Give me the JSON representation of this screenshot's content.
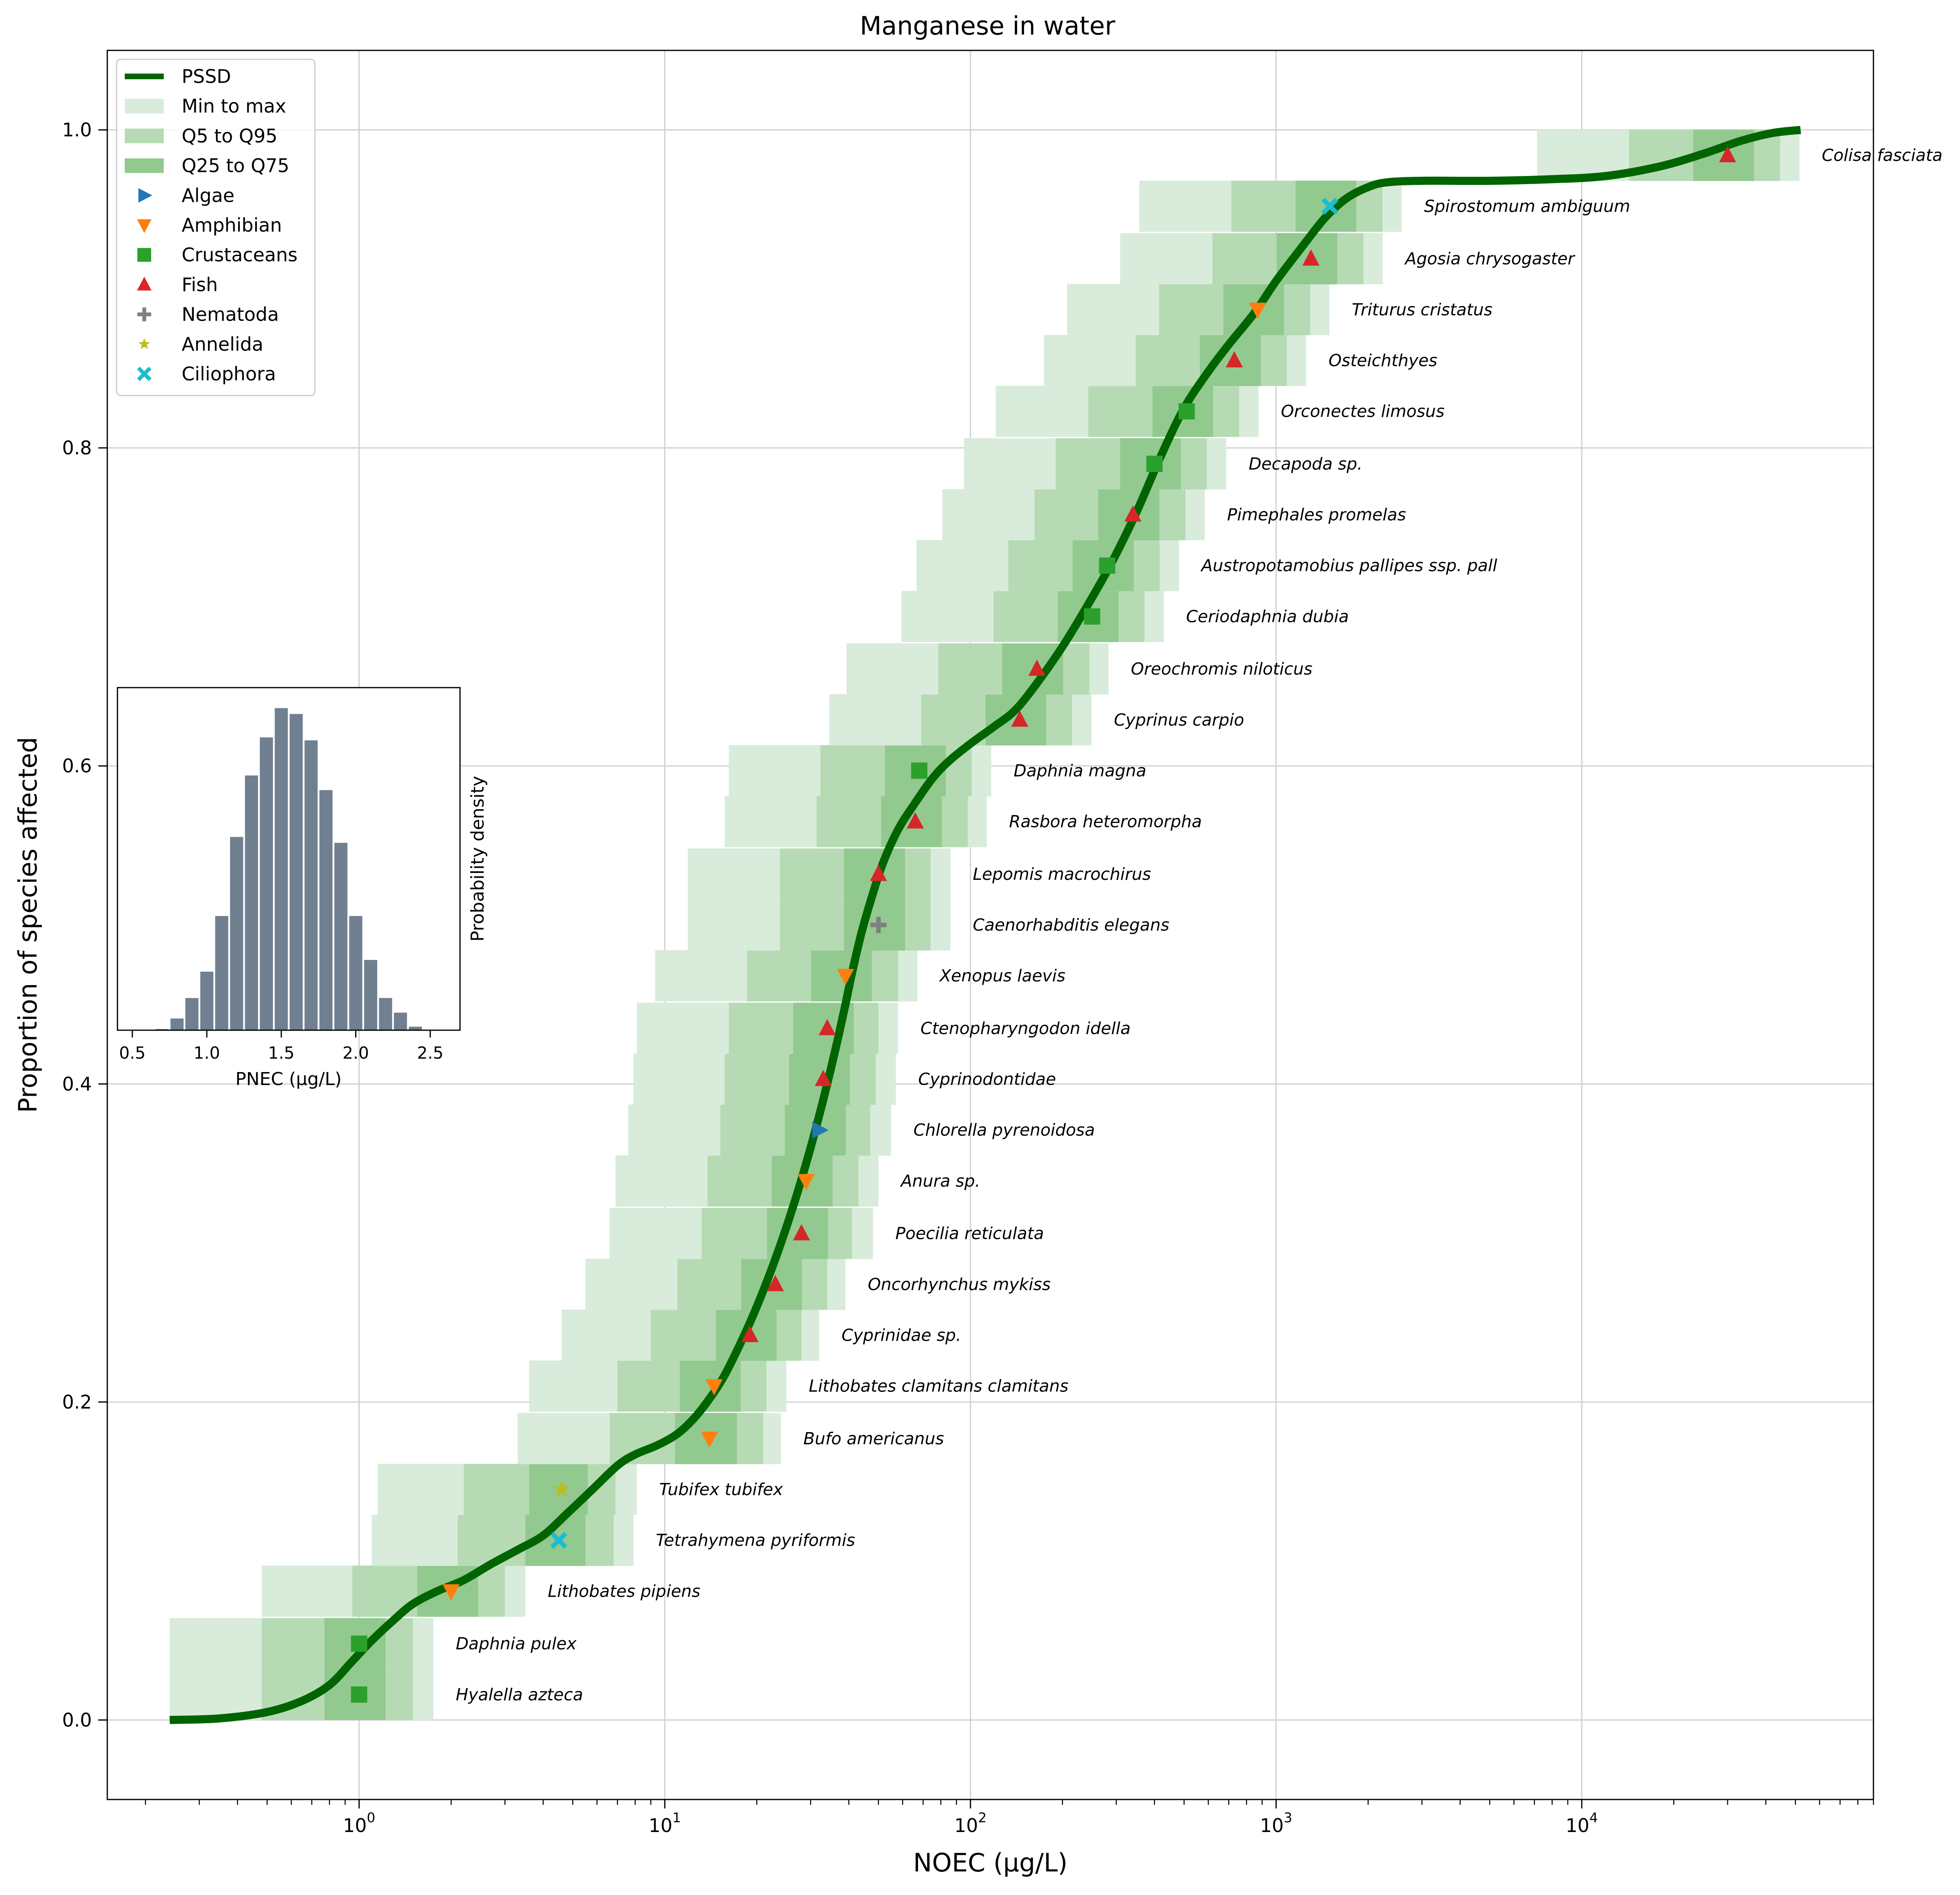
{
  "chart_data": {
    "type": "scatter",
    "title": "Manganese in water",
    "xlabel": "NOEC (µg/L)",
    "ylabel": "Proportion of species affected",
    "xscale": "log",
    "xlim": [
      0.15,
      90000
    ],
    "ylim": [
      -0.05,
      1.05
    ],
    "xticks": [
      {
        "value": 1,
        "base": "10",
        "exp": "0"
      },
      {
        "value": 10,
        "base": "10",
        "exp": "1"
      },
      {
        "value": 100,
        "base": "10",
        "exp": "2"
      },
      {
        "value": 1000,
        "base": "10",
        "exp": "3"
      },
      {
        "value": 10000,
        "base": "10",
        "exp": "4"
      }
    ],
    "yticks": [
      0.0,
      0.2,
      0.4,
      0.6,
      0.8,
      1.0
    ],
    "ytick_labels": [
      "0.0",
      "0.2",
      "0.4",
      "0.6",
      "0.8",
      "1.0"
    ],
    "grid": true,
    "legend_position": "top-left",
    "legend": [
      {
        "label": "PSSD",
        "kind": "line",
        "color": "#006400"
      },
      {
        "label": "Min to max",
        "kind": "patch",
        "color": "#d9ebda"
      },
      {
        "label": "Q5 to Q95",
        "kind": "patch",
        "color": "#b6dbb4"
      },
      {
        "label": "Q25 to Q75",
        "kind": "patch",
        "color": "#92c98f"
      },
      {
        "label": "Algae",
        "kind": "marker",
        "marker": "triangle-right",
        "color": "#1f77b4"
      },
      {
        "label": "Amphibian",
        "kind": "marker",
        "marker": "triangle-down",
        "color": "#ff7f0e"
      },
      {
        "label": "Crustaceans",
        "kind": "marker",
        "marker": "square",
        "color": "#2ca02c"
      },
      {
        "label": "Fish",
        "kind": "marker",
        "marker": "triangle-up",
        "color": "#d62728"
      },
      {
        "label": "Nematoda",
        "kind": "marker",
        "marker": "plus",
        "color": "#7f7f7f"
      },
      {
        "label": "Annelida",
        "kind": "marker",
        "marker": "star",
        "color": "#bcbd22"
      },
      {
        "label": "Ciliophora",
        "kind": "marker",
        "marker": "x",
        "color": "#17becf"
      }
    ],
    "band_colors": {
      "min_max": "#d9ebda",
      "q5_q95": "#b6dbb4",
      "q25_q75": "#92c98f"
    },
    "species": [
      {
        "name": "Hyalella azteca",
        "group": "Crustaceans",
        "y": 0.016,
        "noec": 1.0,
        "min": 0.24,
        "max": 1.75,
        "q5": 0.48,
        "q95": 1.5,
        "q25": 0.77,
        "q75": 1.22
      },
      {
        "name": "Daphnia pulex",
        "group": "Crustaceans",
        "y": 0.048,
        "noec": 1.0,
        "min": 0.24,
        "max": 1.75,
        "q5": 0.48,
        "q95": 1.5,
        "q25": 0.77,
        "q75": 1.22
      },
      {
        "name": "Lithobates pipiens",
        "group": "Amphibian",
        "y": 0.081,
        "noec": 2.0,
        "min": 0.48,
        "max": 3.5,
        "q5": 0.95,
        "q95": 3.0,
        "q25": 1.55,
        "q75": 2.45
      },
      {
        "name": "Tetrahymena pyriformis",
        "group": "Ciliophora",
        "y": 0.113,
        "noec": 4.5,
        "min": 1.1,
        "max": 7.9,
        "q5": 2.1,
        "q95": 6.8,
        "q25": 3.5,
        "q75": 5.5
      },
      {
        "name": "Tubifex tubifex",
        "group": "Annelida",
        "y": 0.145,
        "noec": 4.6,
        "min": 1.15,
        "max": 8.1,
        "q5": 2.2,
        "q95": 6.9,
        "q25": 3.6,
        "q75": 5.6
      },
      {
        "name": "Bufo americanus",
        "group": "Amphibian",
        "y": 0.177,
        "noec": 14.0,
        "min": 3.3,
        "max": 24,
        "q5": 6.6,
        "q95": 21,
        "q25": 10.8,
        "q75": 17.2
      },
      {
        "name": "Lithobates clamitans clamitans",
        "group": "Amphibian",
        "y": 0.21,
        "noec": 14.5,
        "min": 3.6,
        "max": 25,
        "q5": 7.0,
        "q95": 21.5,
        "q25": 11.2,
        "q75": 17.7
      },
      {
        "name": "Cyprinidae sp.",
        "group": "Fish",
        "y": 0.242,
        "noec": 19.0,
        "min": 4.6,
        "max": 32,
        "q5": 9.0,
        "q95": 28,
        "q25": 14.7,
        "q75": 23.2
      },
      {
        "name": "Oncorhynchus mykiss",
        "group": "Fish",
        "y": 0.274,
        "noec": 23.0,
        "min": 5.5,
        "max": 39,
        "q5": 11.0,
        "q95": 34,
        "q25": 17.8,
        "q75": 28.1
      },
      {
        "name": "Poecilia reticulata",
        "group": "Fish",
        "y": 0.306,
        "noec": 28.0,
        "min": 6.6,
        "max": 48,
        "q5": 13.2,
        "q95": 41,
        "q25": 21.6,
        "q75": 34.2
      },
      {
        "name": "Anura sp.",
        "group": "Amphibian",
        "y": 0.339,
        "noec": 29.0,
        "min": 6.9,
        "max": 50,
        "q5": 13.8,
        "q95": 43,
        "q25": 22.4,
        "q75": 35.4
      },
      {
        "name": "Chlorella pyrenoidosa",
        "group": "Algae",
        "y": 0.371,
        "noec": 32.0,
        "min": 7.6,
        "max": 55,
        "q5": 15.2,
        "q95": 47,
        "q25": 24.7,
        "q75": 39.1
      },
      {
        "name": "Cyprinodontidae",
        "group": "Fish",
        "y": 0.403,
        "noec": 33.0,
        "min": 7.9,
        "max": 57,
        "q5": 15.7,
        "q95": 49,
        "q25": 25.5,
        "q75": 40.3
      },
      {
        "name": "Ctenopharyngodon idella",
        "group": "Fish",
        "y": 0.435,
        "noec": 34.0,
        "min": 8.1,
        "max": 58,
        "q5": 16.2,
        "q95": 50,
        "q25": 26.3,
        "q75": 41.5
      },
      {
        "name": "Xenopus laevis",
        "group": "Amphibian",
        "y": 0.468,
        "noec": 39.0,
        "min": 9.3,
        "max": 67,
        "q5": 18.6,
        "q95": 58,
        "q25": 30.1,
        "q75": 47.6
      },
      {
        "name": "Caenorhabditis elegans",
        "group": "Nematoda",
        "y": 0.5,
        "noec": 50.0,
        "min": 11.9,
        "max": 86,
        "q5": 23.8,
        "q95": 74,
        "q25": 38.6,
        "q75": 61.1
      },
      {
        "name": "Lepomis macrochirus",
        "group": "Fish",
        "y": 0.532,
        "noec": 50.0,
        "min": 11.9,
        "max": 86,
        "q5": 23.8,
        "q95": 74,
        "q25": 38.6,
        "q75": 61.1
      },
      {
        "name": "Rasbora heteromorpha",
        "group": "Fish",
        "y": 0.565,
        "noec": 66.0,
        "min": 15.7,
        "max": 113,
        "q5": 31.4,
        "q95": 98,
        "q25": 51,
        "q75": 80.6
      },
      {
        "name": "Daphnia magna",
        "group": "Crustaceans",
        "y": 0.597,
        "noec": 68.0,
        "min": 16.2,
        "max": 117,
        "q5": 32.3,
        "q95": 101,
        "q25": 52.5,
        "q75": 83
      },
      {
        "name": "Cyprinus carpio",
        "group": "Fish",
        "y": 0.629,
        "noec": 145.0,
        "min": 34.5,
        "max": 249,
        "q5": 69,
        "q95": 215,
        "q25": 112,
        "q75": 177
      },
      {
        "name": "Oreochromis niloticus",
        "group": "Fish",
        "y": 0.661,
        "noec": 165.0,
        "min": 39.3,
        "max": 283,
        "q5": 78.5,
        "q95": 245,
        "q25": 127,
        "q75": 201
      },
      {
        "name": "Ceriodaphnia dubia",
        "group": "Crustaceans",
        "y": 0.694,
        "noec": 250.0,
        "min": 59.5,
        "max": 429,
        "q5": 119,
        "q95": 371,
        "q25": 193,
        "q75": 305
      },
      {
        "name": "Austropotamobius pallipes ssp. pall",
        "group": "Crustaceans",
        "y": 0.726,
        "noec": 280.0,
        "min": 66.6,
        "max": 481,
        "q5": 133,
        "q95": 416,
        "q25": 216,
        "q75": 342
      },
      {
        "name": "Pimephales promelas",
        "group": "Fish",
        "y": 0.758,
        "noec": 340.0,
        "min": 80.9,
        "max": 584,
        "q5": 162,
        "q95": 505,
        "q25": 262,
        "q75": 415
      },
      {
        "name": "Decapoda sp.",
        "group": "Crustaceans",
        "y": 0.79,
        "noec": 400.0,
        "min": 95.2,
        "max": 687,
        "q5": 190,
        "q95": 594,
        "q25": 309,
        "q75": 488
      },
      {
        "name": "Orconectes limosus",
        "group": "Crustaceans",
        "y": 0.823,
        "noec": 510.0,
        "min": 121,
        "max": 876,
        "q5": 243,
        "q95": 757,
        "q25": 394,
        "q75": 622
      },
      {
        "name": "Osteichthyes",
        "group": "Fish",
        "y": 0.855,
        "noec": 730.0,
        "min": 174,
        "max": 1254,
        "q5": 347,
        "q95": 1084,
        "q25": 563,
        "q75": 891
      },
      {
        "name": "Triturus cristatus",
        "group": "Amphibian",
        "y": 0.887,
        "noec": 870.0,
        "min": 207,
        "max": 1494,
        "q5": 414,
        "q95": 1292,
        "q25": 672,
        "q75": 1061
      },
      {
        "name": "Agosia chrysogaster",
        "group": "Fish",
        "y": 0.919,
        "noec": 1300.0,
        "min": 309,
        "max": 2233,
        "q5": 619,
        "q95": 1930,
        "q25": 1004,
        "q75": 1586
      },
      {
        "name": "Spirostomum ambiguum",
        "group": "Ciliophora",
        "y": 0.952,
        "noec": 1500.0,
        "min": 357,
        "max": 2576,
        "q5": 714,
        "q95": 2228,
        "q25": 1158,
        "q75": 1830
      },
      {
        "name": "Colisa fasciata",
        "group": "Fish",
        "y": 0.984,
        "noec": 30000.0,
        "min": 7140,
        "max": 51530,
        "q5": 14280,
        "q95": 44550,
        "q25": 23160,
        "q75": 36600
      }
    ],
    "pssd_curve": [
      [
        0.24,
        0.0
      ],
      [
        0.35,
        0.001
      ],
      [
        0.5,
        0.005
      ],
      [
        0.65,
        0.012
      ],
      [
        0.8,
        0.022
      ],
      [
        0.95,
        0.037
      ],
      [
        1.1,
        0.05
      ],
      [
        1.3,
        0.063
      ],
      [
        1.5,
        0.073
      ],
      [
        1.8,
        0.081
      ],
      [
        2.2,
        0.088
      ],
      [
        2.7,
        0.098
      ],
      [
        3.3,
        0.107
      ],
      [
        4.0,
        0.116
      ],
      [
        4.8,
        0.13
      ],
      [
        5.8,
        0.145
      ],
      [
        7.0,
        0.16
      ],
      [
        8.0,
        0.167
      ],
      [
        9.5,
        0.173
      ],
      [
        11,
        0.18
      ],
      [
        12.5,
        0.19
      ],
      [
        14,
        0.202
      ],
      [
        15.5,
        0.215
      ],
      [
        17,
        0.23
      ],
      [
        19,
        0.25
      ],
      [
        21,
        0.27
      ],
      [
        23,
        0.29
      ],
      [
        25,
        0.31
      ],
      [
        27,
        0.33
      ],
      [
        29,
        0.35
      ],
      [
        31,
        0.37
      ],
      [
        33,
        0.39
      ],
      [
        35,
        0.41
      ],
      [
        37,
        0.43
      ],
      [
        39,
        0.45
      ],
      [
        41,
        0.47
      ],
      [
        44,
        0.495
      ],
      [
        48,
        0.52
      ],
      [
        52,
        0.54
      ],
      [
        58,
        0.56
      ],
      [
        65,
        0.575
      ],
      [
        75,
        0.592
      ],
      [
        85,
        0.603
      ],
      [
        100,
        0.614
      ],
      [
        120,
        0.625
      ],
      [
        140,
        0.635
      ],
      [
        165,
        0.652
      ],
      [
        200,
        0.675
      ],
      [
        240,
        0.7
      ],
      [
        290,
        0.728
      ],
      [
        350,
        0.76
      ],
      [
        420,
        0.795
      ],
      [
        500,
        0.825
      ],
      [
        600,
        0.848
      ],
      [
        700,
        0.865
      ],
      [
        850,
        0.885
      ],
      [
        1000,
        0.905
      ],
      [
        1200,
        0.925
      ],
      [
        1450,
        0.945
      ],
      [
        1700,
        0.957
      ],
      [
        2000,
        0.964
      ],
      [
        2300,
        0.967
      ],
      [
        3000,
        0.968
      ],
      [
        5000,
        0.968
      ],
      [
        8000,
        0.969
      ],
      [
        12000,
        0.971
      ],
      [
        18000,
        0.977
      ],
      [
        25000,
        0.985
      ],
      [
        33000,
        0.993
      ],
      [
        42000,
        0.998
      ],
      [
        52000,
        1.0
      ]
    ]
  },
  "inset": {
    "xlabel": "PNEC (µg/L)",
    "ylabel": "Probability density",
    "xlim": [
      0.4,
      2.7
    ],
    "xticks": [
      0.5,
      1.0,
      1.5,
      2.0,
      2.5
    ],
    "xtick_labels": [
      "0.5",
      "1.0",
      "1.5",
      "2.0",
      "2.5"
    ],
    "bar_color": "#708090",
    "bins": [
      {
        "x": 0.7,
        "density": 0.004
      },
      {
        "x": 0.8,
        "density": 0.04
      },
      {
        "x": 0.9,
        "density": 0.11
      },
      {
        "x": 1.0,
        "density": 0.2
      },
      {
        "x": 1.1,
        "density": 0.39
      },
      {
        "x": 1.2,
        "density": 0.66
      },
      {
        "x": 1.3,
        "density": 0.87
      },
      {
        "x": 1.4,
        "density": 1.0
      },
      {
        "x": 1.5,
        "density": 1.1
      },
      {
        "x": 1.6,
        "density": 1.08
      },
      {
        "x": 1.7,
        "density": 0.99
      },
      {
        "x": 1.8,
        "density": 0.82
      },
      {
        "x": 1.9,
        "density": 0.64
      },
      {
        "x": 2.0,
        "density": 0.39
      },
      {
        "x": 2.1,
        "density": 0.24
      },
      {
        "x": 2.2,
        "density": 0.11
      },
      {
        "x": 2.3,
        "density": 0.06
      },
      {
        "x": 2.4,
        "density": 0.012
      }
    ]
  }
}
